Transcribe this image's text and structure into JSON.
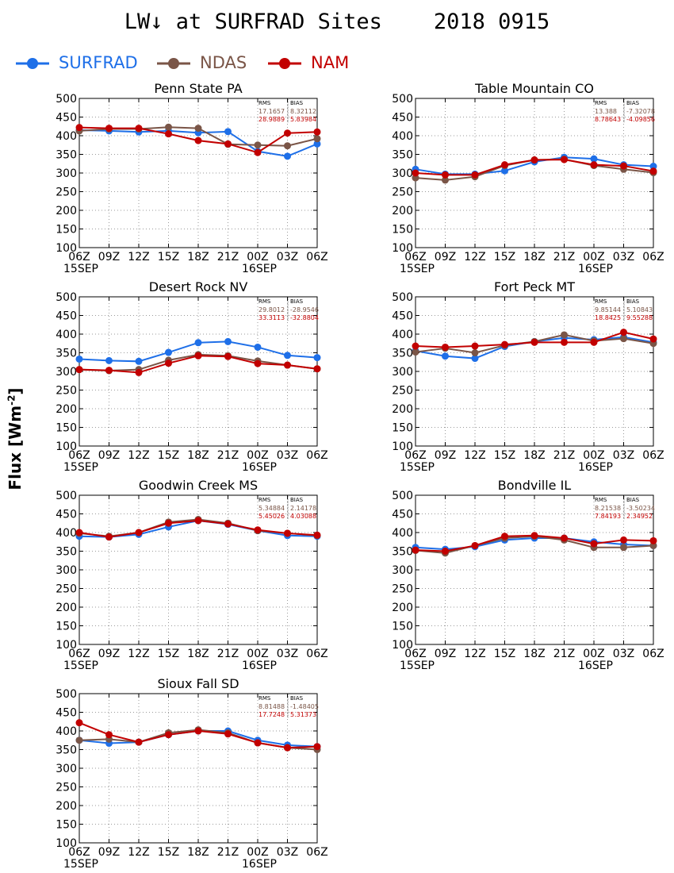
{
  "title": "LW↓ at SURFRAD Sites    2018 0915",
  "y_label_main": "Flux [Wm",
  "y_label_exp": "-2",
  "y_label_end": "]",
  "legend": [
    {
      "name": "SURFRAD",
      "color": "#1e6fe8"
    },
    {
      "name": "NDAS",
      "color": "#7a5547"
    },
    {
      "name": "NAM",
      "color": "#c20000"
    }
  ],
  "chart_data": [
    {
      "type": "line",
      "title": "Penn State PA",
      "categories": [
        "06Z",
        "09Z",
        "12Z",
        "15Z",
        "18Z",
        "21Z",
        "00Z",
        "03Z",
        "06Z"
      ],
      "date_labels": [
        {
          "index": 0,
          "text": "15SEP"
        },
        {
          "index": 6,
          "text": "16SEP"
        }
      ],
      "ylim": [
        100,
        500
      ],
      "yticks": [
        100,
        150,
        200,
        250,
        300,
        350,
        400,
        450,
        500
      ],
      "grid": true,
      "stats": {
        "headers": [
          "RMS",
          "BIAS"
        ],
        "rows": [
          [
            "17.1657",
            "8.32112"
          ],
          [
            "28.9889",
            "5.83984"
          ]
        ]
      },
      "series": [
        {
          "name": "SURFRAD",
          "values": [
            415,
            413,
            410,
            413,
            408,
            411,
            358,
            345,
            378
          ]
        },
        {
          "name": "NDAS",
          "values": [
            413,
            418,
            418,
            423,
            420,
            377,
            375,
            373,
            392
          ]
        },
        {
          "name": "NAM",
          "values": [
            422,
            420,
            420,
            405,
            387,
            378,
            355,
            407,
            410
          ]
        }
      ]
    },
    {
      "type": "line",
      "title": "Table Mountain CO",
      "categories": [
        "06Z",
        "09Z",
        "12Z",
        "15Z",
        "18Z",
        "21Z",
        "00Z",
        "03Z",
        "06Z"
      ],
      "date_labels": [
        {
          "index": 0,
          "text": "15SEP"
        },
        {
          "index": 6,
          "text": "16SEP"
        }
      ],
      "ylim": [
        100,
        500
      ],
      "yticks": [
        100,
        150,
        200,
        250,
        300,
        350,
        400,
        450,
        500
      ],
      "grid": true,
      "stats": {
        "headers": [
          "RMS",
          "BIAS"
        ],
        "rows": [
          [
            "13.388",
            "-7.32078"
          ],
          [
            "8.78643",
            "-4.09856"
          ]
        ]
      },
      "series": [
        {
          "name": "SURFRAD",
          "values": [
            310,
            297,
            297,
            306,
            330,
            342,
            338,
            322,
            318
          ]
        },
        {
          "name": "NDAS",
          "values": [
            287,
            281,
            290,
            320,
            335,
            337,
            320,
            310,
            301
          ]
        },
        {
          "name": "NAM",
          "values": [
            300,
            295,
            295,
            322,
            335,
            336,
            322,
            319,
            305
          ]
        }
      ]
    },
    {
      "type": "line",
      "title": "Desert Rock NV",
      "categories": [
        "06Z",
        "09Z",
        "12Z",
        "15Z",
        "18Z",
        "21Z",
        "00Z",
        "03Z",
        "06Z"
      ],
      "date_labels": [
        {
          "index": 0,
          "text": "15SEP"
        },
        {
          "index": 6,
          "text": "16SEP"
        }
      ],
      "ylim": [
        100,
        500
      ],
      "yticks": [
        100,
        150,
        200,
        250,
        300,
        350,
        400,
        450,
        500
      ],
      "grid": true,
      "stats": {
        "headers": [
          "RMS",
          "BIAS"
        ],
        "rows": [
          [
            "29.8012",
            "-28.9546"
          ],
          [
            "33.3113",
            "-32.8804"
          ]
        ]
      },
      "series": [
        {
          "name": "SURFRAD",
          "values": [
            333,
            329,
            327,
            351,
            377,
            380,
            365,
            343,
            337
          ]
        },
        {
          "name": "NDAS",
          "values": [
            305,
            302,
            305,
            330,
            345,
            342,
            328,
            317,
            307
          ]
        },
        {
          "name": "NAM",
          "values": [
            305,
            303,
            297,
            322,
            342,
            340,
            321,
            317,
            307
          ]
        }
      ]
    },
    {
      "type": "line",
      "title": "Fort Peck MT",
      "categories": [
        "06Z",
        "09Z",
        "12Z",
        "15Z",
        "18Z",
        "21Z",
        "00Z",
        "03Z",
        "06Z"
      ],
      "date_labels": [
        {
          "index": 0,
          "text": "15SEP"
        },
        {
          "index": 6,
          "text": "16SEP"
        }
      ],
      "ylim": [
        100,
        500
      ],
      "yticks": [
        100,
        150,
        200,
        250,
        300,
        350,
        400,
        450,
        500
      ],
      "grid": true,
      "stats": {
        "headers": [
          "RMS",
          "BIAS"
        ],
        "rows": [
          [
            "9.85144",
            "5.10843"
          ],
          [
            "18.8425",
            "9.55288"
          ]
        ]
      },
      "series": [
        {
          "name": "SURFRAD",
          "values": [
            355,
            341,
            335,
            367,
            380,
            390,
            385,
            392,
            378
          ]
        },
        {
          "name": "NDAS",
          "values": [
            352,
            362,
            350,
            370,
            380,
            398,
            382,
            388,
            375
          ]
        },
        {
          "name": "NAM",
          "values": [
            368,
            365,
            368,
            372,
            378,
            378,
            378,
            405,
            387
          ]
        }
      ]
    },
    {
      "type": "line",
      "title": "Goodwin Creek MS",
      "categories": [
        "06Z",
        "09Z",
        "12Z",
        "15Z",
        "18Z",
        "21Z",
        "00Z",
        "03Z",
        "06Z"
      ],
      "date_labels": [
        {
          "index": 0,
          "text": "15SEP"
        },
        {
          "index": 6,
          "text": "16SEP"
        }
      ],
      "ylim": [
        100,
        500
      ],
      "yticks": [
        100,
        150,
        200,
        250,
        300,
        350,
        400,
        450,
        500
      ],
      "grid": true,
      "stats": {
        "headers": [
          "RMS",
          "BIAS"
        ],
        "rows": [
          [
            "5.34884",
            "2.14178"
          ],
          [
            "5.45026",
            "4.03088"
          ]
        ]
      },
      "series": [
        {
          "name": "SURFRAD",
          "values": [
            390,
            388,
            395,
            415,
            432,
            422,
            405,
            392,
            390
          ]
        },
        {
          "name": "NDAS",
          "values": [
            398,
            390,
            400,
            428,
            435,
            425,
            405,
            398,
            392
          ]
        },
        {
          "name": "NAM",
          "values": [
            400,
            388,
            400,
            425,
            432,
            423,
            407,
            398,
            393
          ]
        }
      ]
    },
    {
      "type": "line",
      "title": "Bondville IL",
      "categories": [
        "06Z",
        "09Z",
        "12Z",
        "15Z",
        "18Z",
        "21Z",
        "00Z",
        "03Z",
        "06Z"
      ],
      "date_labels": [
        {
          "index": 0,
          "text": "15SEP"
        },
        {
          "index": 6,
          "text": "16SEP"
        }
      ],
      "ylim": [
        100,
        500
      ],
      "yticks": [
        100,
        150,
        200,
        250,
        300,
        350,
        400,
        450,
        500
      ],
      "grid": true,
      "stats": {
        "headers": [
          "RMS",
          "BIAS"
        ],
        "rows": [
          [
            "8.21538",
            "-3.50234"
          ],
          [
            "7.84193",
            "2.34952"
          ]
        ]
      },
      "series": [
        {
          "name": "SURFRAD",
          "values": [
            360,
            355,
            362,
            380,
            385,
            385,
            375,
            368,
            365
          ]
        },
        {
          "name": "NDAS",
          "values": [
            352,
            345,
            365,
            385,
            390,
            380,
            360,
            360,
            365
          ]
        },
        {
          "name": "NAM",
          "values": [
            353,
            350,
            365,
            390,
            392,
            385,
            370,
            380,
            378
          ]
        }
      ]
    },
    {
      "type": "line",
      "title": "Sioux Fall SD",
      "categories": [
        "06Z",
        "09Z",
        "12Z",
        "15Z",
        "18Z",
        "21Z",
        "00Z",
        "03Z",
        "06Z"
      ],
      "date_labels": [
        {
          "index": 0,
          "text": "15SEP"
        },
        {
          "index": 6,
          "text": "16SEP"
        }
      ],
      "ylim": [
        100,
        500
      ],
      "yticks": [
        100,
        150,
        200,
        250,
        300,
        350,
        400,
        450,
        500
      ],
      "grid": true,
      "stats": {
        "headers": [
          "RMS",
          "BIAS"
        ],
        "rows": [
          [
            "8.81488",
            "-1.48405"
          ],
          [
            "17.7248",
            "5.31373"
          ]
        ]
      },
      "series": [
        {
          "name": "SURFRAD",
          "values": [
            375,
            367,
            370,
            390,
            400,
            400,
            375,
            362,
            358
          ]
        },
        {
          "name": "NDAS",
          "values": [
            375,
            378,
            370,
            395,
            403,
            395,
            368,
            355,
            350
          ]
        },
        {
          "name": "NAM",
          "values": [
            422,
            390,
            370,
            390,
            400,
            392,
            368,
            355,
            358
          ]
        }
      ]
    }
  ]
}
